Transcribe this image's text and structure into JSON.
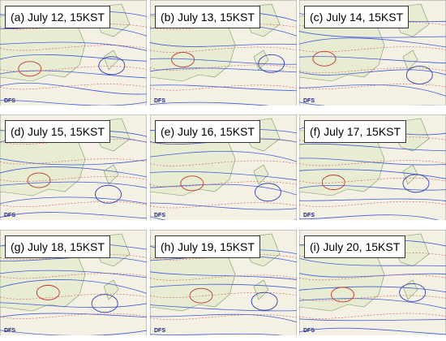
{
  "panels": [
    {
      "label": "(a) July 12, 15KST",
      "logo": "DFS"
    },
    {
      "label": "(b) July 13, 15KST",
      "logo": "DFS"
    },
    {
      "label": "(c) July 14, 15KST",
      "logo": "DFS"
    },
    {
      "label": "(d) July 15, 15KST",
      "logo": "DFS"
    },
    {
      "label": "(e) July 16, 15KST",
      "logo": "DFS"
    },
    {
      "label": "(f) July 17, 15KST",
      "logo": "DFS"
    },
    {
      "label": "(g) July 18, 15KST",
      "logo": "DFS"
    },
    {
      "label": "(h) July 19, 15KST",
      "logo": "DFS"
    },
    {
      "label": "(i) July 20, 15KST",
      "logo": "DFS"
    }
  ]
}
